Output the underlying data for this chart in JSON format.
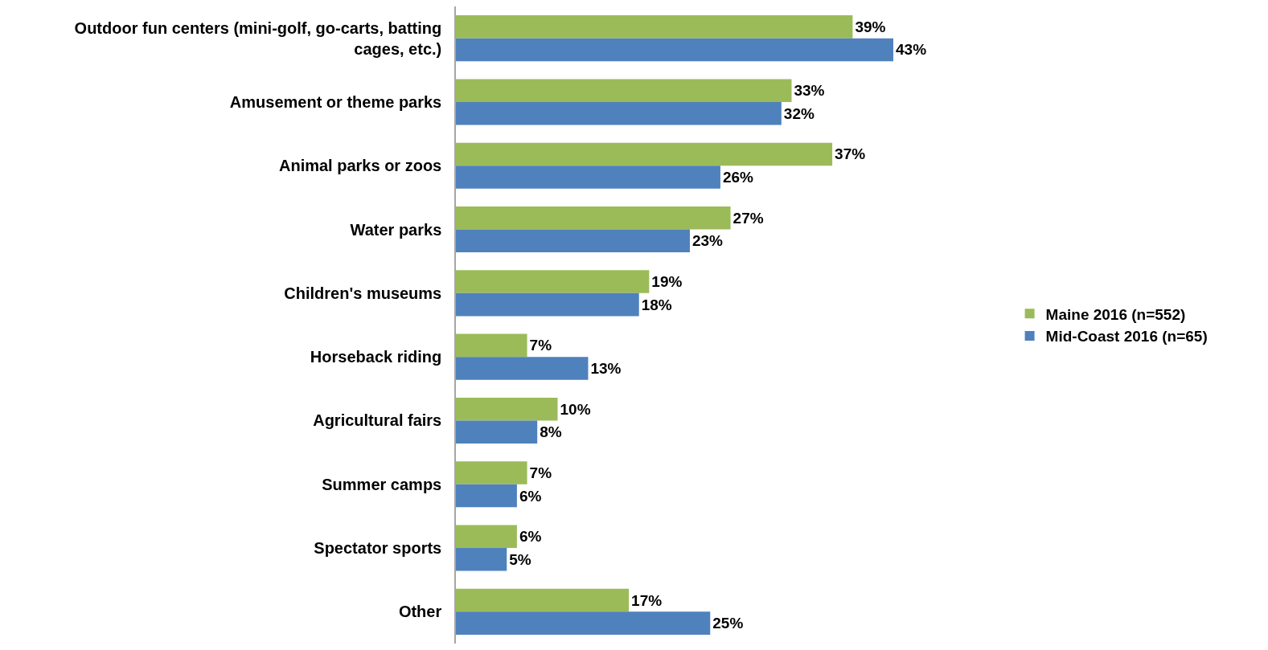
{
  "chart_data": {
    "type": "bar",
    "orientation": "horizontal",
    "legend": "right",
    "categories": [
      "Outdoor fun centers (mini-golf, go-carts, batting cages, etc.)",
      "Amusement or theme parks",
      "Animal parks or zoos",
      "Water parks",
      "Children's museums",
      "Horseback riding",
      "Agricultural fairs",
      "Summer camps",
      "Spectator sports",
      "Other"
    ],
    "series": [
      {
        "name": "Maine 2016 (n=552)",
        "color": "#9bbb59",
        "values": [
          39,
          33,
          37,
          27,
          19,
          7,
          10,
          7,
          6,
          17
        ],
        "value_labels": [
          "39%",
          "33%",
          "37%",
          "27%",
          "19%",
          "7%",
          "10%",
          "7%",
          "6%",
          "17%"
        ]
      },
      {
        "name": "Mid-Coast 2016 (n=65)",
        "color": "#4f81bd",
        "values": [
          43,
          32,
          26,
          23,
          18,
          13,
          8,
          6,
          5,
          25
        ],
        "value_labels": [
          "43%",
          "32%",
          "26%",
          "23%",
          "18%",
          "13%",
          "8%",
          "6%",
          "5%",
          "25%"
        ]
      }
    ]
  }
}
